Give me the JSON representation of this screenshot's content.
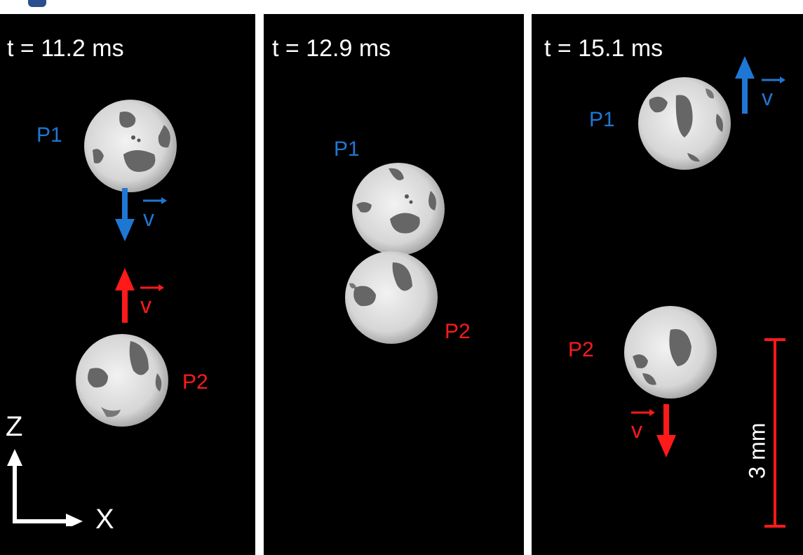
{
  "panels": [
    {
      "time": "t = 11.2 ms",
      "p1_label": "P1",
      "p2_label": "P2",
      "p1_velocity": {
        "symbol": "v",
        "direction": "down"
      },
      "p2_velocity": {
        "symbol": "v",
        "direction": "up"
      }
    },
    {
      "time": "t = 12.9 ms",
      "p1_label": "P1",
      "p2_label": "P2"
    },
    {
      "time": "t = 15.1 ms",
      "p1_label": "P1",
      "p2_label": "P2",
      "p1_velocity": {
        "symbol": "v",
        "direction": "up"
      },
      "p2_velocity": {
        "symbol": "v",
        "direction": "down"
      }
    }
  ],
  "axes": {
    "z_label": "Z",
    "x_label": "X"
  },
  "scale_bar": {
    "label": "3 mm"
  },
  "colors": {
    "p1": "#1f77d4",
    "p2": "#ff1a1a",
    "background": "#000000"
  }
}
